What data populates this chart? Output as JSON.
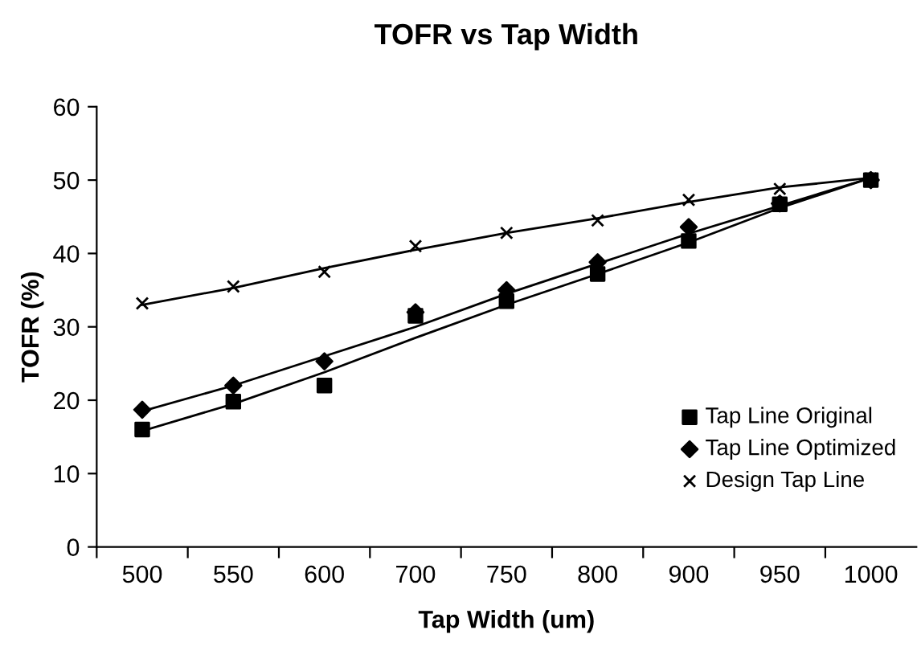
{
  "chart_data": {
    "type": "scatter",
    "title": "TOFR vs Tap Width",
    "xlabel": "Tap Width (um)",
    "ylabel": "TOFR (%)",
    "categories": [
      "500",
      "550",
      "600",
      "700",
      "750",
      "800",
      "900",
      "950",
      "1000"
    ],
    "ylim": [
      0,
      60
    ],
    "yticks": [
      0,
      10,
      20,
      30,
      40,
      50,
      60
    ],
    "grid": false,
    "legend": "bottom right",
    "series": [
      {
        "name": "Tap Line Original",
        "color": "#000000",
        "marker": "square",
        "values": [
          16,
          19.8,
          22,
          31.5,
          33.5,
          37.2,
          41.7,
          46.7,
          50
        ]
      },
      {
        "name": "Tap Line Optimized",
        "color": "#000000",
        "marker": "diamond",
        "values": [
          18.7,
          22,
          25.3,
          32,
          35,
          38.8,
          43.6,
          46.8,
          50
        ]
      },
      {
        "name": "Design Tap Line",
        "color": "#000000",
        "marker": "cross",
        "values": [
          33.2,
          35.5,
          37.5,
          41,
          42.8,
          44.5,
          47.3,
          48.8,
          50.2
        ]
      },
      {
        "type": "line",
        "color": "#000000",
        "values": [
          15.8,
          19.5,
          23.8,
          28.5,
          33.0,
          37.2,
          41.5,
          46.2,
          50.3
        ]
      },
      {
        "type": "line",
        "color": "#000000",
        "values": [
          18.5,
          22,
          26,
          30,
          34.5,
          38.6,
          42.7,
          46.5,
          50.3
        ]
      },
      {
        "type": "line",
        "color": "#000000",
        "values": [
          33,
          35.3,
          38,
          40.5,
          42.8,
          44.8,
          47,
          49,
          50.3
        ]
      }
    ]
  }
}
